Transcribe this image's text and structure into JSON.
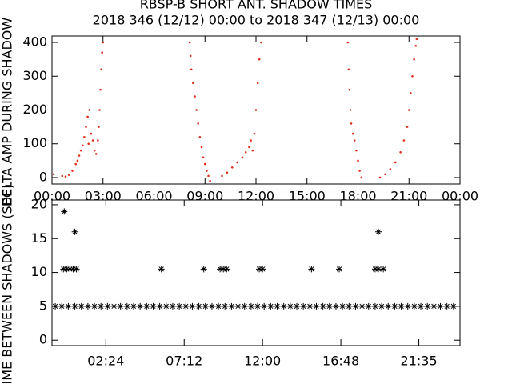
{
  "chart_data": [
    {
      "type": "scatter",
      "title": "RBSP-B SHORT ANT. SHADOW TIMES",
      "subtitle": "2018 346 (12/12) 00:00 to 2018 347 (12/13) 00:00",
      "ylabel": "DELTA AMP DURING SHADOW",
      "xlim": [
        0,
        24
      ],
      "ylim": [
        -19,
        419
      ],
      "xticks": [
        {
          "value": 0,
          "label": "00:00"
        },
        {
          "value": 3,
          "label": "03:00"
        },
        {
          "value": 6,
          "label": "06:00"
        },
        {
          "value": 9,
          "label": "09:00"
        },
        {
          "value": 12,
          "label": "12:00"
        },
        {
          "value": 15,
          "label": "15:00"
        },
        {
          "value": 18,
          "label": "18:00"
        },
        {
          "value": 21,
          "label": "21:00"
        },
        {
          "value": 24,
          "label": "00:00"
        }
      ],
      "yticks": [
        0,
        100,
        200,
        300,
        400
      ],
      "series": [
        {
          "color": "#e0301e",
          "x": [
            0.1,
            0.6,
            0.8,
            1.0,
            1.2,
            1.4,
            1.5,
            1.6,
            1.7,
            1.8,
            1.9,
            2.0,
            2.1,
            2.15,
            2.2,
            2.3,
            2.4,
            2.5,
            2.6,
            2.7,
            2.75,
            2.8,
            2.85,
            2.9,
            2.95,
            3.0,
            8.1,
            8.15,
            8.2,
            8.3,
            8.4,
            8.5,
            8.6,
            8.7,
            8.8,
            8.9,
            9.0,
            9.1,
            9.2,
            9.3,
            10.0,
            10.3,
            10.6,
            10.9,
            11.2,
            11.4,
            11.6,
            11.7,
            11.8,
            11.9,
            12.0,
            12.1,
            12.2,
            12.3,
            17.4,
            17.45,
            17.5,
            17.55,
            17.6,
            17.7,
            17.8,
            17.9,
            18.0,
            18.1,
            18.2,
            19.3,
            19.6,
            19.9,
            20.2,
            20.5,
            20.7,
            20.9,
            21.0,
            21.1,
            21.2,
            21.3,
            21.4,
            21.45
          ],
          "values": [
            10,
            5,
            3,
            8,
            20,
            40,
            50,
            65,
            80,
            95,
            120,
            150,
            180,
            100,
            200,
            130,
            110,
            80,
            70,
            110,
            150,
            200,
            260,
            320,
            370,
            400,
            400,
            360,
            320,
            280,
            240,
            200,
            160,
            120,
            90,
            60,
            40,
            20,
            5,
            -10,
            5,
            15,
            30,
            45,
            60,
            75,
            90,
            110,
            80,
            130,
            200,
            280,
            350,
            400,
            400,
            320,
            260,
            200,
            160,
            130,
            110,
            80,
            50,
            20,
            0,
            0,
            10,
            25,
            45,
            75,
            110,
            150,
            200,
            250,
            300,
            350,
            390,
            410
          ]
        }
      ]
    },
    {
      "type": "scatter",
      "ylabel": "TIME BETWEEN SHADOWS (SEC)",
      "xlim": [
        -0.9,
        24.1
      ],
      "ylim": [
        -0.8,
        20.7
      ],
      "xticks": [
        {
          "value": 2.4,
          "label": "02:24"
        },
        {
          "value": 7.2,
          "label": "07:12"
        },
        {
          "value": 12,
          "label": "12:00"
        },
        {
          "value": 16.8,
          "label": "16:48"
        },
        {
          "value": 21.58,
          "label": "21:35"
        }
      ],
      "yticks": [
        0,
        5,
        10,
        15,
        20
      ],
      "series": [
        {
          "color": "#000000",
          "x": [
            -0.7,
            -0.3,
            0.1,
            0.5,
            0.9,
            1.3,
            1.7,
            2.1,
            2.5,
            2.9,
            3.3,
            3.7,
            4.1,
            4.5,
            4.9,
            5.3,
            5.7,
            6.1,
            6.5,
            6.9,
            7.3,
            7.7,
            8.1,
            8.5,
            8.9,
            9.3,
            9.7,
            10.1,
            10.5,
            10.9,
            11.3,
            11.7,
            12.1,
            12.5,
            12.9,
            13.3,
            13.7,
            14.1,
            14.5,
            14.9,
            15.3,
            15.7,
            16.1,
            16.5,
            16.9,
            17.3,
            17.7,
            18.1,
            18.5,
            18.9,
            19.3,
            19.7,
            20.1,
            20.5,
            20.9,
            21.3,
            21.7,
            22.1,
            22.5,
            22.9,
            23.3,
            23.7,
            -0.15,
            0.5,
            -0.2,
            0.0,
            0.2,
            0.4,
            0.6,
            5.8,
            8.4,
            9.4,
            9.6,
            9.8,
            11.8,
            12.0,
            15.0,
            16.7,
            18.9,
            19.1,
            19.4,
            19.1
          ],
          "values": [
            5,
            5,
            5,
            5,
            5,
            5,
            5,
            5,
            5,
            5,
            5,
            5,
            5,
            5,
            5,
            5,
            5,
            5,
            5,
            5,
            5,
            5,
            5,
            5,
            5,
            5,
            5,
            5,
            5,
            5,
            5,
            5,
            5,
            5,
            5,
            5,
            5,
            5,
            5,
            5,
            5,
            5,
            5,
            5,
            5,
            5,
            5,
            5,
            5,
            5,
            5,
            5,
            5,
            5,
            5,
            5,
            5,
            5,
            5,
            5,
            5,
            5,
            19,
            16,
            10.5,
            10.5,
            10.5,
            10.5,
            10.5,
            10.5,
            10.5,
            10.5,
            10.5,
            10.5,
            10.5,
            10.5,
            10.5,
            10.5,
            10.5,
            10.5,
            10.5,
            16
          ]
        }
      ]
    }
  ]
}
